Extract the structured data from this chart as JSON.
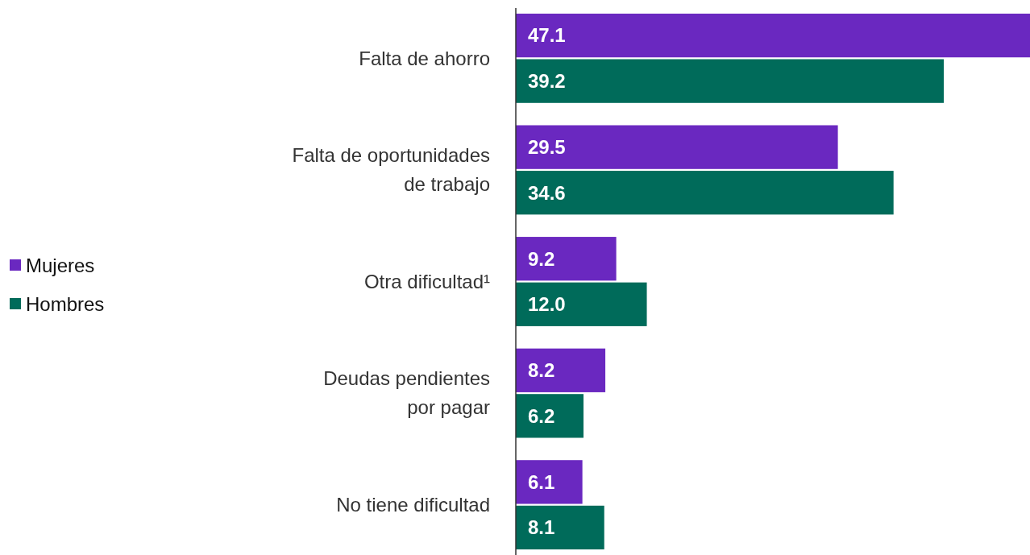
{
  "chart_data": {
    "type": "bar",
    "orientation": "horizontal",
    "categories": [
      "Falta de ahorro",
      "Falta de oportunidades de trabajo",
      "Otra dificultad¹",
      "Deudas pendientes por pagar",
      "No tiene dificultad"
    ],
    "series": [
      {
        "name": "Mujeres",
        "color": "#6a28c0",
        "values": [
          47.1,
          29.5,
          9.2,
          8.2,
          6.1
        ],
        "value_labels": [
          "47.1",
          "29.5",
          "9.2",
          "8.2",
          "6.1"
        ]
      },
      {
        "name": "Hombres",
        "color": "#006b5a",
        "values": [
          39.2,
          34.6,
          12.0,
          6.2,
          8.1
        ],
        "value_labels": [
          "39.2",
          "34.6",
          "12.0",
          "6.2",
          "8.1"
        ]
      }
    ],
    "legend": "left"
  }
}
